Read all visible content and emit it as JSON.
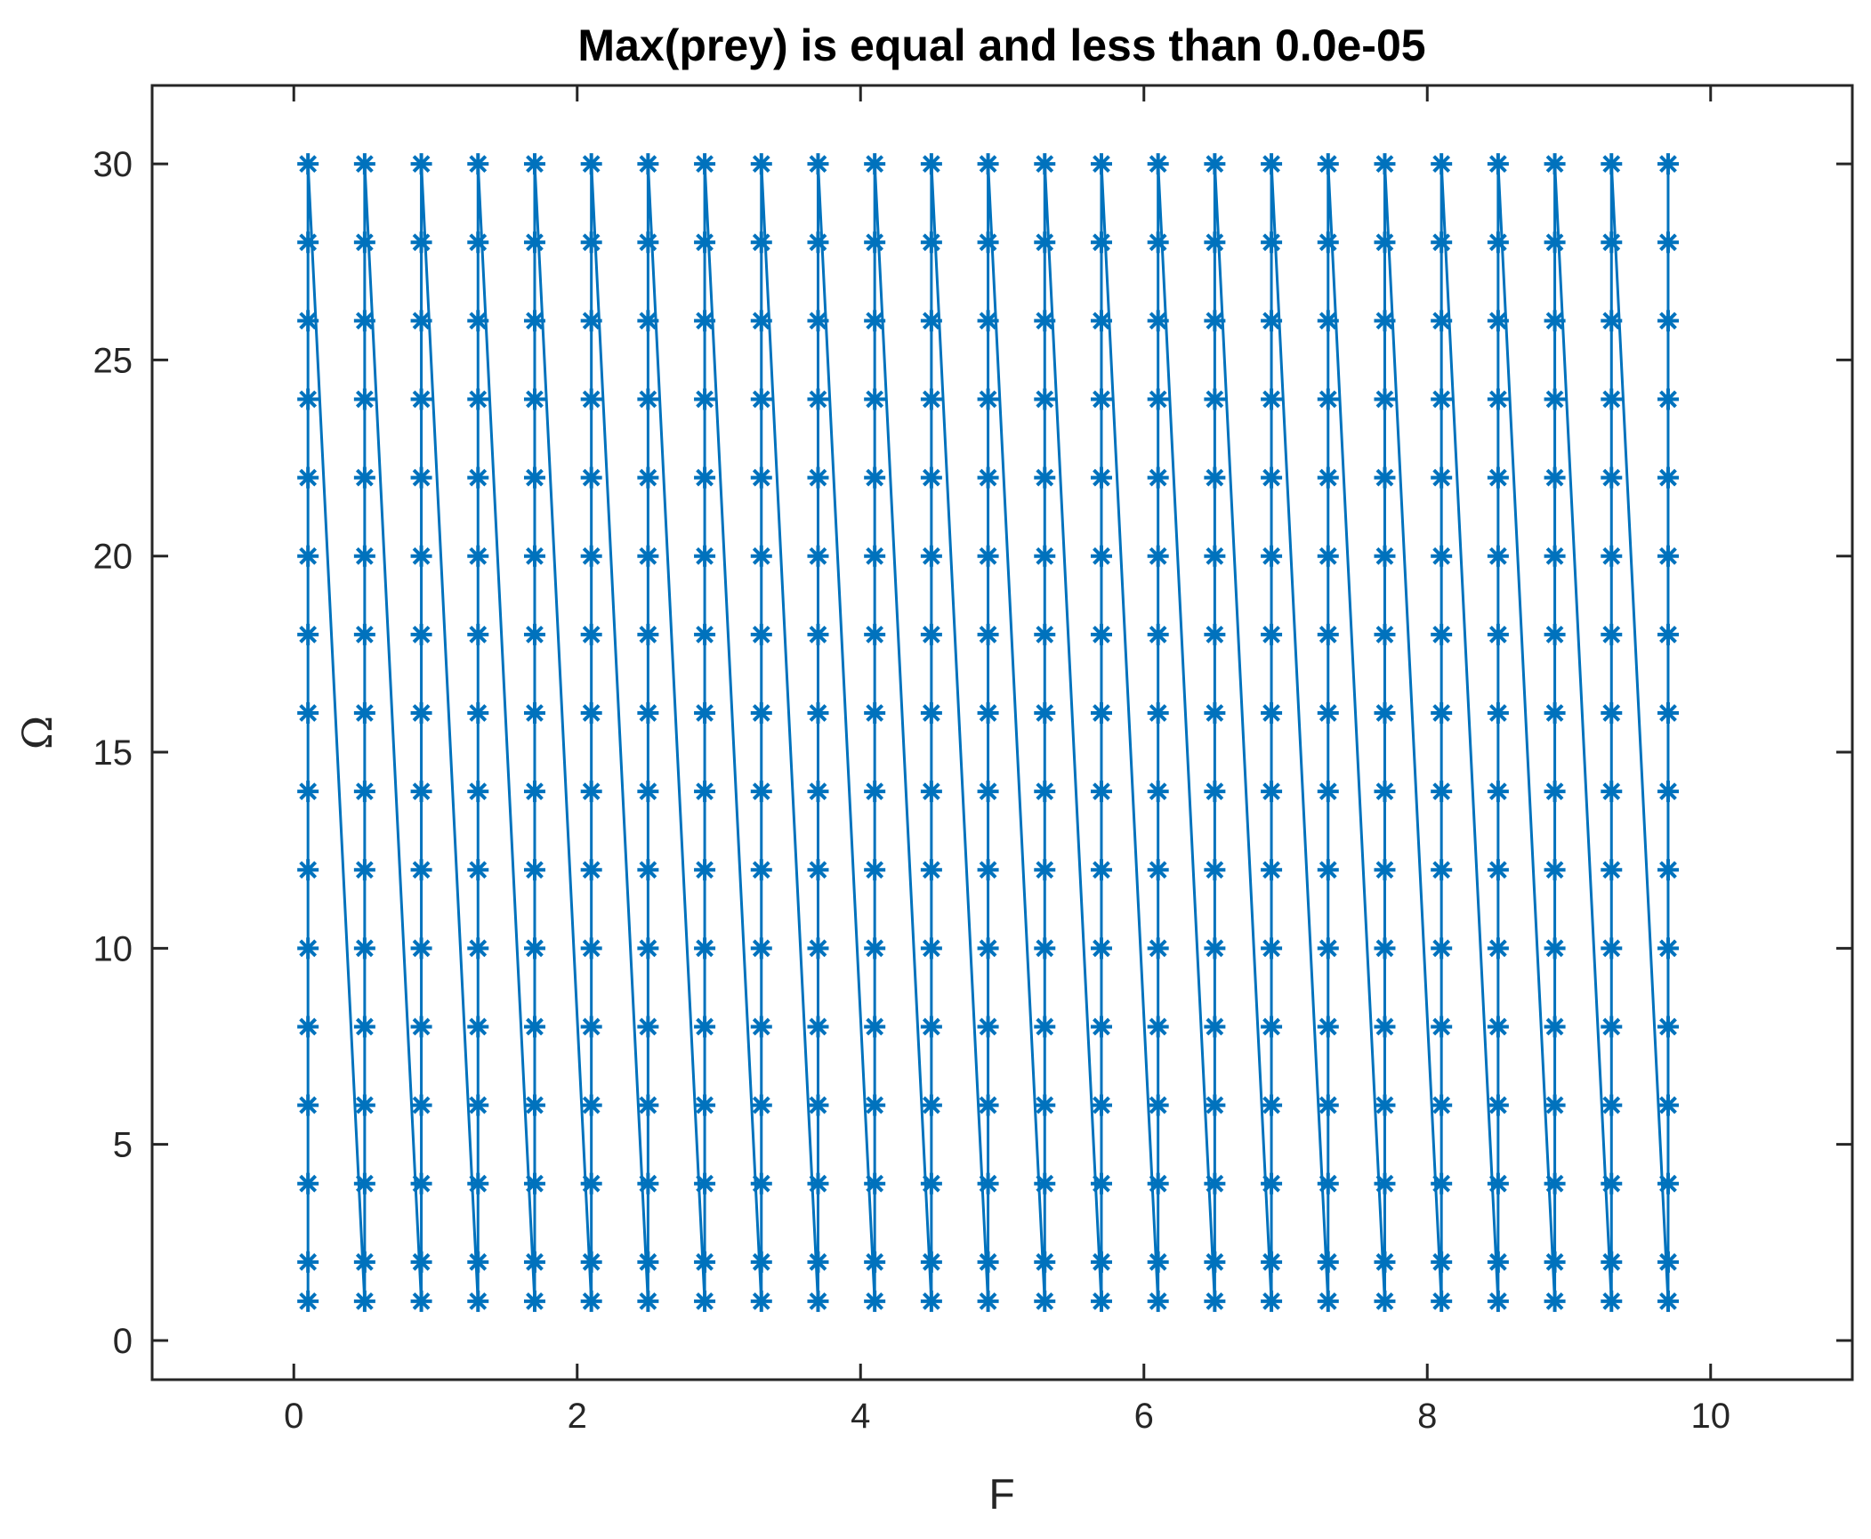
{
  "chart_data": {
    "type": "line",
    "title": "Max(prey) is equal and less than 0.0e-05",
    "xlabel": "F",
    "ylabel": "Ω",
    "xlim": [
      -1,
      11
    ],
    "ylim": [
      -1,
      32
    ],
    "xticks": [
      0,
      2,
      4,
      6,
      8,
      10
    ],
    "yticks": [
      0,
      5,
      10,
      15,
      20,
      25,
      30
    ],
    "grid": false,
    "legend": "none",
    "marker": "asterisk",
    "line_color": "#0072BD",
    "F_values": [
      0.1,
      0.5,
      0.9,
      1.3,
      1.7,
      2.1,
      2.5,
      2.9,
      3.3,
      3.7,
      4.1,
      4.5,
      4.9,
      5.3,
      5.7,
      6.1,
      6.5,
      6.9,
      7.3,
      7.7,
      8.1,
      8.5,
      8.9,
      9.3,
      9.7
    ],
    "Omega_values": [
      1,
      2,
      4,
      6,
      8,
      10,
      12,
      14,
      16,
      18,
      20,
      22,
      24,
      26,
      28,
      30
    ],
    "ordering": "for each F, Omega runs from 1 to 30; the line then jumps to the next F at Omega 1"
  }
}
